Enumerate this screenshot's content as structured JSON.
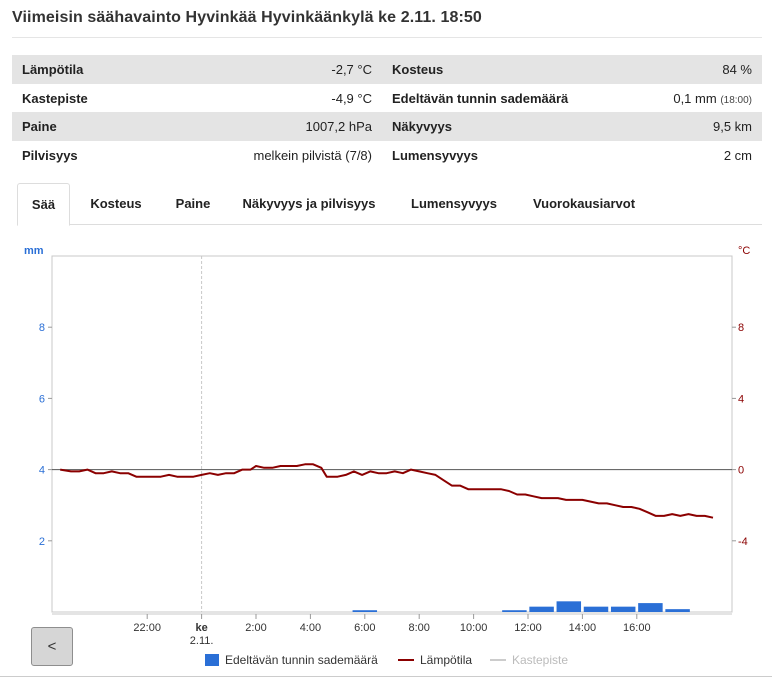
{
  "page": {
    "title": "Viimeisin säähavainto Hyvinkää Hyvinkäänkylä ke 2.11. 18:50"
  },
  "observations": {
    "rows": [
      {
        "label1": "Lämpötila",
        "value1": "-2,7 °C",
        "label2": "Kosteus",
        "value2": "84 %",
        "note2": ""
      },
      {
        "label1": "Kastepiste",
        "value1": "-4,9 °C",
        "label2": "Edeltävän tunnin sademäärä",
        "value2": "0,1 mm",
        "note2": "(18:00)"
      },
      {
        "label1": "Paine",
        "value1": "1007,2 hPa",
        "label2": "Näkyvyys",
        "value2": "9,5 km",
        "note2": ""
      },
      {
        "label1": "Pilvisyys",
        "value1": "melkein pilvistä (7/8)",
        "label2": "Lumensyvyys",
        "value2": "2 cm",
        "note2": ""
      }
    ]
  },
  "tabs": [
    {
      "label": "Sää",
      "active": true
    },
    {
      "label": "Kosteus",
      "active": false
    },
    {
      "label": "Paine",
      "active": false
    },
    {
      "label": "Näkyvyys ja pilvisyys",
      "active": false
    },
    {
      "label": "Lumensyvyys",
      "active": false
    },
    {
      "label": "Vuorokausiarvot",
      "active": false
    }
  ],
  "navigation": {
    "prev_label": "<"
  },
  "chart_data": {
    "type": "line",
    "left_axis": {
      "unit": "mm",
      "ticks": [
        2,
        4,
        6,
        8
      ],
      "range": [
        0,
        10
      ]
    },
    "right_axis": {
      "unit": "°C",
      "ticks": [
        -4,
        0,
        4,
        8
      ],
      "range": [
        -8,
        12
      ]
    },
    "x_ticks": [
      "22:00",
      "ke\n2.11.",
      "2:00",
      "4:00",
      "6:00",
      "8:00",
      "10:00",
      "12:00",
      "14:00",
      "16:00"
    ],
    "x_tick_hours": [
      -2,
      0,
      2,
      4,
      6,
      8,
      10,
      12,
      14,
      16
    ],
    "x_range_hours": [
      -5.5,
      19.5
    ],
    "day_divider_hour": 0,
    "colors": {
      "temperature": "#8b0000",
      "precipitation": "#2a6fd6",
      "dewpoint": "#cccccc",
      "left_axis": "#2a6fd6",
      "right_axis": "#8b0000"
    },
    "series": [
      {
        "name": "Lämpötila",
        "axis": "right",
        "points": [
          [
            -5.2,
            0.0
          ],
          [
            -4.8,
            -0.1
          ],
          [
            -4.5,
            -0.1
          ],
          [
            -4.2,
            0.0
          ],
          [
            -3.9,
            -0.2
          ],
          [
            -3.6,
            -0.2
          ],
          [
            -3.3,
            -0.1
          ],
          [
            -3.0,
            -0.2
          ],
          [
            -2.7,
            -0.2
          ],
          [
            -2.4,
            -0.4
          ],
          [
            -2.1,
            -0.4
          ],
          [
            -1.8,
            -0.4
          ],
          [
            -1.5,
            -0.4
          ],
          [
            -1.2,
            -0.3
          ],
          [
            -0.9,
            -0.4
          ],
          [
            -0.6,
            -0.4
          ],
          [
            -0.3,
            -0.4
          ],
          [
            0.0,
            -0.3
          ],
          [
            0.3,
            -0.2
          ],
          [
            0.6,
            -0.3
          ],
          [
            0.9,
            -0.2
          ],
          [
            1.2,
            -0.2
          ],
          [
            1.5,
            0.0
          ],
          [
            1.8,
            0.0
          ],
          [
            2.0,
            0.2
          ],
          [
            2.3,
            0.1
          ],
          [
            2.6,
            0.1
          ],
          [
            2.9,
            0.2
          ],
          [
            3.2,
            0.2
          ],
          [
            3.5,
            0.2
          ],
          [
            3.8,
            0.3
          ],
          [
            4.1,
            0.3
          ],
          [
            4.4,
            0.1
          ],
          [
            4.6,
            -0.4
          ],
          [
            5.0,
            -0.4
          ],
          [
            5.3,
            -0.3
          ],
          [
            5.6,
            -0.1
          ],
          [
            5.9,
            -0.3
          ],
          [
            6.2,
            -0.1
          ],
          [
            6.5,
            -0.2
          ],
          [
            6.8,
            -0.2
          ],
          [
            7.1,
            -0.1
          ],
          [
            7.4,
            -0.2
          ],
          [
            7.7,
            0.0
          ],
          [
            8.0,
            -0.1
          ],
          [
            8.3,
            -0.2
          ],
          [
            8.6,
            -0.3
          ],
          [
            8.9,
            -0.6
          ],
          [
            9.2,
            -0.9
          ],
          [
            9.5,
            -0.9
          ],
          [
            9.8,
            -1.1
          ],
          [
            10.1,
            -1.1
          ],
          [
            10.4,
            -1.1
          ],
          [
            10.7,
            -1.1
          ],
          [
            11.0,
            -1.1
          ],
          [
            11.3,
            -1.2
          ],
          [
            11.6,
            -1.4
          ],
          [
            11.9,
            -1.4
          ],
          [
            12.2,
            -1.5
          ],
          [
            12.5,
            -1.6
          ],
          [
            12.8,
            -1.6
          ],
          [
            13.1,
            -1.6
          ],
          [
            13.4,
            -1.7
          ],
          [
            13.7,
            -1.7
          ],
          [
            14.0,
            -1.7
          ],
          [
            14.3,
            -1.8
          ],
          [
            14.6,
            -1.9
          ],
          [
            14.9,
            -1.9
          ],
          [
            15.2,
            -2.0
          ],
          [
            15.5,
            -2.1
          ],
          [
            15.8,
            -2.1
          ],
          [
            16.1,
            -2.2
          ],
          [
            16.4,
            -2.4
          ],
          [
            16.7,
            -2.6
          ],
          [
            17.0,
            -2.6
          ],
          [
            17.3,
            -2.5
          ],
          [
            17.6,
            -2.6
          ],
          [
            17.9,
            -2.5
          ],
          [
            18.2,
            -2.6
          ],
          [
            18.5,
            -2.6
          ],
          [
            18.8,
            -2.7
          ]
        ]
      },
      {
        "name": "Edeltävän tunnin sademäärä",
        "axis": "left",
        "bars": [
          [
            6.0,
            0.05
          ],
          [
            11.5,
            0.05
          ],
          [
            12.5,
            0.15
          ],
          [
            13.5,
            0.3
          ],
          [
            14.5,
            0.15
          ],
          [
            15.5,
            0.15
          ],
          [
            16.5,
            0.25
          ],
          [
            17.5,
            0.08
          ]
        ]
      },
      {
        "name": "Kastepiste",
        "axis": "right",
        "points": []
      }
    ],
    "legend": [
      {
        "name": "Edeltävän tunnin sademäärä",
        "marker": "box",
        "color": "#2a6fd6"
      },
      {
        "name": "Lämpötila",
        "marker": "line",
        "color": "#8b0000"
      },
      {
        "name": "Kastepiste",
        "marker": "line",
        "color": "#cccccc"
      }
    ]
  }
}
